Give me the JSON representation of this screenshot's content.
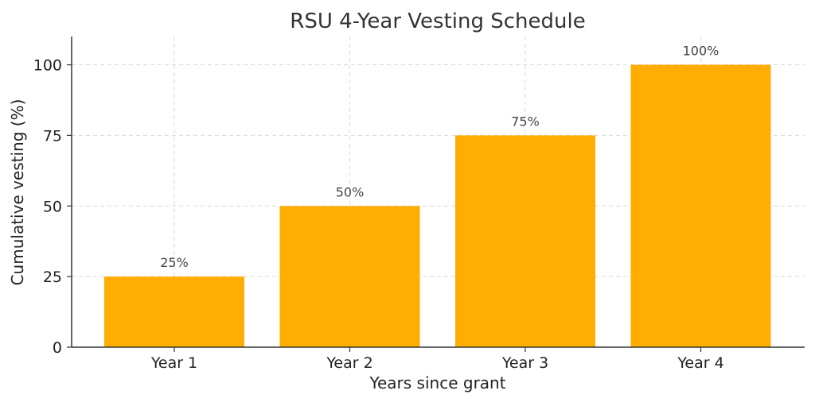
{
  "chart_data": {
    "type": "bar",
    "title": "RSU 4-Year Vesting Schedule",
    "xlabel": "Years since grant",
    "ylabel": "Cumulative vesting (%)",
    "categories": [
      "Year 1",
      "Year 2",
      "Year 3",
      "Year 4"
    ],
    "values": [
      25,
      50,
      75,
      100
    ],
    "data_labels": [
      "25%",
      "50%",
      "75%",
      "100%"
    ],
    "yticks": [
      0,
      25,
      50,
      75,
      100
    ],
    "ylim": [
      0,
      110
    ],
    "grid": true,
    "bar_color": "#ffad00"
  }
}
